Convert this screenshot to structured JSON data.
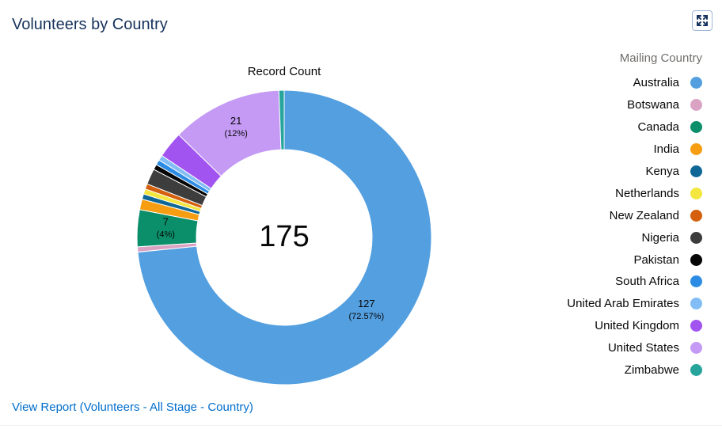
{
  "header": {
    "title": "Volunteers by Country",
    "expand_icon": "expand-icon"
  },
  "chart_data": {
    "type": "pie",
    "variant": "donut",
    "title": "Record Count",
    "center_total": "175",
    "legend_title": "Mailing Country",
    "legend_position": "right",
    "slices": [
      {
        "name": "Australia",
        "value": 127,
        "label": "127",
        "percent_label": "(72.57%)",
        "color": "#539fe0"
      },
      {
        "name": "Botswana",
        "value": 1,
        "label": "",
        "percent_label": "",
        "color": "#daa3c4"
      },
      {
        "name": "Canada",
        "value": 7,
        "label": "7",
        "percent_label": "(4%)",
        "color": "#0b8f6a"
      },
      {
        "name": "India",
        "value": 2,
        "label": "",
        "percent_label": "",
        "color": "#f69d12"
      },
      {
        "name": "Kenya",
        "value": 1,
        "label": "",
        "percent_label": "",
        "color": "#0e6797"
      },
      {
        "name": "Netherlands",
        "value": 1,
        "label": "",
        "percent_label": "",
        "color": "#f3e63f"
      },
      {
        "name": "New Zealand",
        "value": 1,
        "label": "",
        "percent_label": "",
        "color": "#d4600d"
      },
      {
        "name": "Nigeria",
        "value": 3,
        "label": "",
        "percent_label": "",
        "color": "#3d3d3d"
      },
      {
        "name": "Pakistan",
        "value": 1,
        "label": "",
        "percent_label": "",
        "color": "#060606"
      },
      {
        "name": "South Africa",
        "value": 1,
        "label": "",
        "percent_label": "",
        "color": "#2c8ce4"
      },
      {
        "name": "United Arab Emirates",
        "value": 1,
        "label": "",
        "percent_label": "",
        "color": "#82bef5"
      },
      {
        "name": "United Kingdom",
        "value": 5,
        "label": "",
        "percent_label": "",
        "color": "#a254f0"
      },
      {
        "name": "United States",
        "value": 21,
        "label": "21",
        "percent_label": "(12%)",
        "color": "#c49af4"
      },
      {
        "name": "Zimbabwe",
        "value": 1,
        "label": "",
        "percent_label": "",
        "color": "#27a59c"
      }
    ]
  },
  "footer": {
    "link_text": "View Report (Volunteers - All Stage - Country)"
  }
}
